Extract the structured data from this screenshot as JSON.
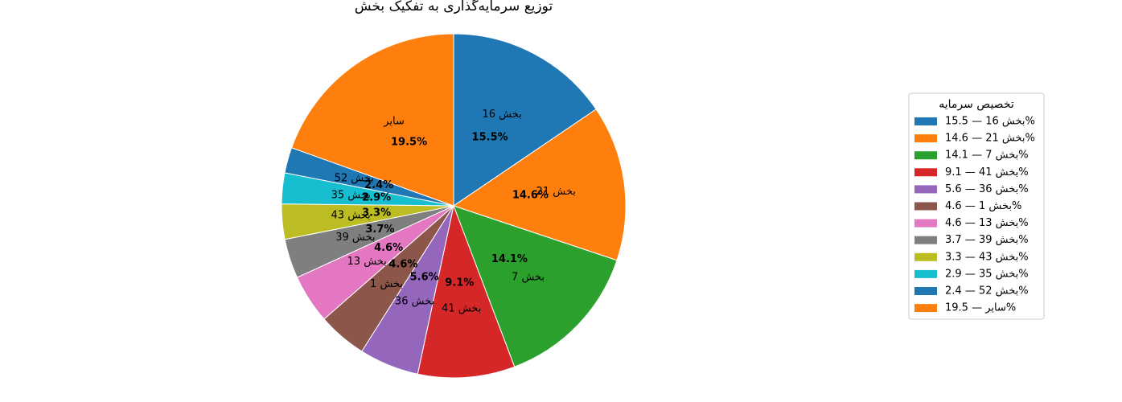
{
  "chart_data": {
    "type": "pie",
    "title": "توزیع سرمایه‌گذاری به تفکیک بخش",
    "start_angle_deg": 90,
    "direction": "clockwise",
    "labels": [
      "بخش 16",
      "بخش 21",
      "بخش 7",
      "بخش 41",
      "بخش 36",
      "بخش 1",
      "بخش 13",
      "بخش 39",
      "بخش 43",
      "بخش 35",
      "بخش 52",
      "سایر"
    ],
    "values": [
      15.5,
      14.6,
      14.1,
      9.1,
      5.6,
      4.6,
      4.6,
      3.7,
      3.3,
      2.9,
      2.4,
      19.5
    ],
    "pct_labels": [
      "15.5%",
      "14.6%",
      "14.1%",
      "9.1%",
      "5.6%",
      "4.6%",
      "4.6%",
      "3.7%",
      "3.3%",
      "2.9%",
      "2.4%",
      "19.5%"
    ],
    "colors": [
      "#1f77b4",
      "#ff7f0e",
      "#2ca02c",
      "#d62728",
      "#9467bd",
      "#8c564b",
      "#e377c2",
      "#7f7f7f",
      "#bcbd22",
      "#17becf",
      "#1f77b4",
      "#ff7f0e"
    ],
    "legend": {
      "title": "تخصیص سرمایه",
      "placement": "right",
      "entries": [
        "بخش 16 — 15.5%",
        "بخش 21 — 14.6%",
        "بخش 7 — 14.1%",
        "بخش 41 — 9.1%",
        "بخش 36 — 5.6%",
        "بخش 1 — 4.6%",
        "بخش 13 — 4.6%",
        "بخش 39 — 3.7%",
        "بخش 43 — 3.3%",
        "بخش 35 — 2.9%",
        "بخش 52 — 2.4%",
        "سایر — 19.5%"
      ]
    }
  }
}
